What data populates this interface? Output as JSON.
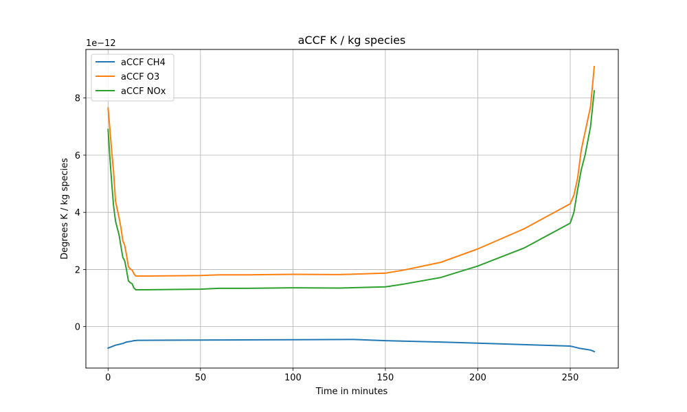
{
  "chart_data": {
    "type": "line",
    "title": "aCCF K / kg species",
    "xlabel": "Time in minutes",
    "ylabel": "Degrees K / kg species",
    "y_offset_label": "1e−12",
    "xlim": [
      -12,
      276
    ],
    "ylim": [
      -1.45,
      9.7
    ],
    "x_ticks": [
      0,
      50,
      100,
      150,
      200,
      250
    ],
    "y_ticks": [
      0,
      2,
      4,
      6,
      8
    ],
    "grid": true,
    "legend_position": "top-left",
    "series": [
      {
        "name": "aCCF CH4",
        "color": "#1f77b4",
        "points": [
          [
            0,
            -0.75
          ],
          [
            2,
            -0.7
          ],
          [
            4,
            -0.65
          ],
          [
            6,
            -0.62
          ],
          [
            8,
            -0.59
          ],
          [
            10,
            -0.54
          ],
          [
            12,
            -0.52
          ],
          [
            14,
            -0.49
          ],
          [
            16,
            -0.48
          ],
          [
            50,
            -0.47
          ],
          [
            100,
            -0.46
          ],
          [
            133,
            -0.45
          ],
          [
            150,
            -0.49
          ],
          [
            180,
            -0.54
          ],
          [
            200,
            -0.58
          ],
          [
            250,
            -0.68
          ],
          [
            252,
            -0.71
          ],
          [
            255,
            -0.76
          ],
          [
            258,
            -0.79
          ],
          [
            261,
            -0.82
          ],
          [
            263,
            -0.87
          ]
        ]
      },
      {
        "name": "aCCF O3",
        "color": "#ff7f0e",
        "points": [
          [
            0,
            7.65
          ],
          [
            1,
            6.9
          ],
          [
            2,
            6.1
          ],
          [
            3,
            5.4
          ],
          [
            4,
            4.4
          ],
          [
            5,
            4.1
          ],
          [
            6,
            3.8
          ],
          [
            7,
            3.45
          ],
          [
            8,
            3.0
          ],
          [
            9,
            2.85
          ],
          [
            10,
            2.5
          ],
          [
            11,
            2.1
          ],
          [
            12,
            2.02
          ],
          [
            13,
            1.98
          ],
          [
            14,
            1.85
          ],
          [
            15,
            1.77
          ],
          [
            20,
            1.77
          ],
          [
            50,
            1.79
          ],
          [
            60,
            1.81
          ],
          [
            76,
            1.81
          ],
          [
            100,
            1.83
          ],
          [
            125,
            1.82
          ],
          [
            150,
            1.87
          ],
          [
            160,
            1.98
          ],
          [
            180,
            2.25
          ],
          [
            200,
            2.72
          ],
          [
            225,
            3.42
          ],
          [
            250,
            4.3
          ],
          [
            252,
            4.6
          ],
          [
            254,
            5.2
          ],
          [
            256,
            6.2
          ],
          [
            258,
            6.8
          ],
          [
            261,
            7.7
          ],
          [
            263,
            9.1
          ]
        ]
      },
      {
        "name": "aCCF NOx",
        "color": "#2ca02c",
        "points": [
          [
            0,
            6.9
          ],
          [
            1,
            5.9
          ],
          [
            2,
            5.0
          ],
          [
            3,
            4.2
          ],
          [
            4,
            3.7
          ],
          [
            5,
            3.45
          ],
          [
            6,
            3.2
          ],
          [
            7,
            2.8
          ],
          [
            8,
            2.42
          ],
          [
            9,
            2.3
          ],
          [
            10,
            1.98
          ],
          [
            11,
            1.6
          ],
          [
            12,
            1.54
          ],
          [
            13,
            1.5
          ],
          [
            14,
            1.35
          ],
          [
            15,
            1.29
          ],
          [
            20,
            1.29
          ],
          [
            50,
            1.31
          ],
          [
            60,
            1.34
          ],
          [
            76,
            1.34
          ],
          [
            100,
            1.36
          ],
          [
            125,
            1.35
          ],
          [
            150,
            1.39
          ],
          [
            160,
            1.49
          ],
          [
            180,
            1.72
          ],
          [
            200,
            2.12
          ],
          [
            225,
            2.75
          ],
          [
            250,
            3.62
          ],
          [
            252,
            4.0
          ],
          [
            254,
            4.8
          ],
          [
            256,
            5.5
          ],
          [
            258,
            6.0
          ],
          [
            261,
            7.0
          ],
          [
            263,
            8.25
          ]
        ]
      }
    ]
  }
}
